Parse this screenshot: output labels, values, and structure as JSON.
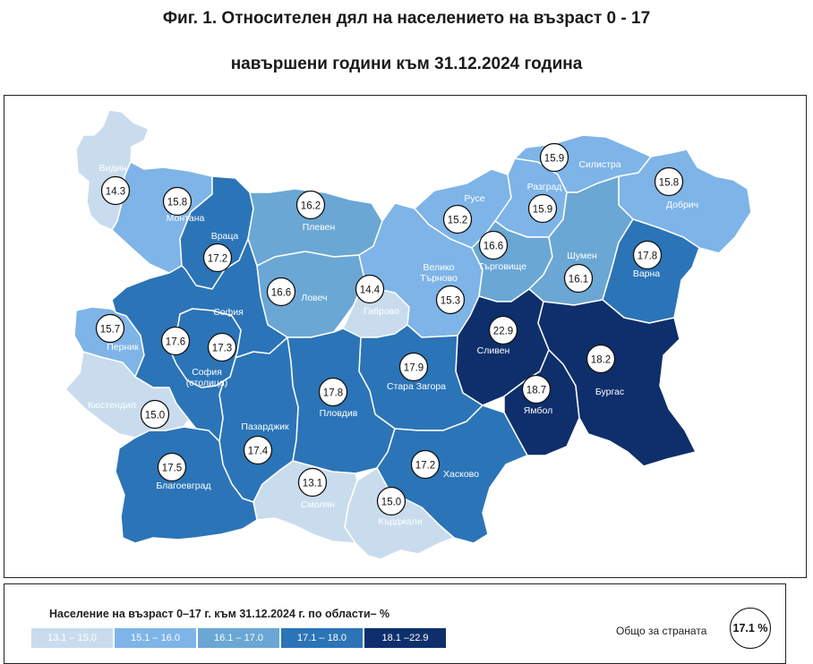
{
  "title_line1": "Фиг. 1. Относителен дял на населението на възраст 0 - 17",
  "title_line2": "навършени години към 31.12.2024 година",
  "colors": {
    "c1": "#c9dcee",
    "c2": "#7eb4e7",
    "c3": "#6aa7d4",
    "c4": "#2b74b7",
    "c5": "#0e2f6b"
  },
  "regions": [
    {
      "name": "Видин",
      "value": "14.3",
      "cls": "c1"
    },
    {
      "name": "Монтана",
      "value": "15.8",
      "cls": "c2"
    },
    {
      "name": "Враца",
      "value": "17.2",
      "cls": "c4"
    },
    {
      "name": "Плевен",
      "value": "16.2",
      "cls": "c3"
    },
    {
      "name": "Ловеч",
      "value": "16.6",
      "cls": "c3"
    },
    {
      "name": "Габрово",
      "value": "14.4",
      "cls": "c1"
    },
    {
      "name": "Велико Търново",
      "value": "15.3",
      "cls": "c2"
    },
    {
      "name": "Русе",
      "value": "15.2",
      "cls": "c2"
    },
    {
      "name": "Разград",
      "value": "15.9",
      "cls": "c2"
    },
    {
      "name": "Силистра",
      "value": "15.9",
      "cls": "c2"
    },
    {
      "name": "Добрич",
      "value": "15.8",
      "cls": "c2"
    },
    {
      "name": "Търговище",
      "value": "16.6",
      "cls": "c3"
    },
    {
      "name": "Шумен",
      "value": "16.1",
      "cls": "c3"
    },
    {
      "name": "Варна",
      "value": "17.8",
      "cls": "c4"
    },
    {
      "name": "Сливен",
      "value": "22.9",
      "cls": "c5"
    },
    {
      "name": "Ямбол",
      "value": "18.7",
      "cls": "c5"
    },
    {
      "name": "Бургас",
      "value": "18.2",
      "cls": "c5"
    },
    {
      "name": "Стара Загора",
      "value": "17.9",
      "cls": "c4"
    },
    {
      "name": "Пловдив",
      "value": "17.8",
      "cls": "c4"
    },
    {
      "name": "Хасково",
      "value": "17.2",
      "cls": "c4"
    },
    {
      "name": "Кърджали",
      "value": "15.0",
      "cls": "c1"
    },
    {
      "name": "Смолян",
      "value": "13.1",
      "cls": "c1"
    },
    {
      "name": "Пазарджик",
      "value": "17.4",
      "cls": "c4"
    },
    {
      "name": "Благоевград",
      "value": "17.5",
      "cls": "c4"
    },
    {
      "name": "Кюстендил",
      "value": "15.0",
      "cls": "c1"
    },
    {
      "name": "Перник",
      "value": "15.7",
      "cls": "c2"
    },
    {
      "name": "София",
      "value": "17.6",
      "cls": "c4"
    },
    {
      "name": "София (столица)",
      "value": "17.3",
      "cls": "c4"
    }
  ],
  "legend": {
    "title": "Население на възраст 0–17 г. към 31.12.2024 г. по области– %",
    "ranges": [
      "13.1 – 15.0",
      "15.1 – 16.0",
      "16.1 – 17.0",
      "17.1 – 18.0",
      "18.1 –22.9"
    ],
    "total_label": "Общо за страната",
    "total_value": "17.1 %"
  }
}
